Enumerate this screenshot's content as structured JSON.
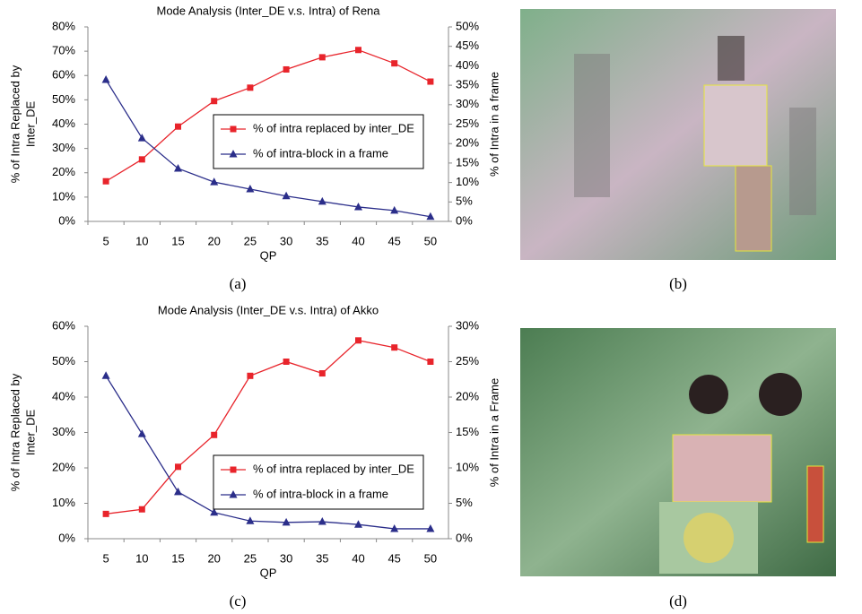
{
  "chart_data": [
    {
      "type": "line",
      "title": "Mode Analysis (Inter_DE v.s. Intra) of Rena",
      "xlabel": "QP",
      "ylabel": [
        "% of Intra Replaced by",
        "Inter_DE"
      ],
      "y2label": "% of Intra in a frame",
      "categories": [
        5,
        10,
        15,
        20,
        25,
        30,
        35,
        40,
        45,
        50
      ],
      "series": [
        {
          "name": "% of intra replaced by inter_DE",
          "color": "#e8242b",
          "marker": "square",
          "values": [
            16.5,
            25.5,
            39,
            49.5,
            55,
            62.5,
            67.5,
            70.5,
            65,
            57.5
          ]
        },
        {
          "name": "% of intra-block in a frame",
          "color": "#2b2e8a",
          "marker": "triangle",
          "axis": "y2",
          "values": [
            36.4,
            21.4,
            13.6,
            10.1,
            8.3,
            6.5,
            5.1,
            3.7,
            2.8,
            1.2
          ]
        }
      ],
      "ylim": [
        0,
        80
      ],
      "yticks": [
        {
          "value": 0,
          "label": "0%"
        },
        {
          "value": 10,
          "label": "10%"
        },
        {
          "value": 20,
          "label": "20%"
        },
        {
          "value": 30,
          "label": "30%"
        },
        {
          "value": 40,
          "label": "40%"
        },
        {
          "value": 50,
          "label": "50%"
        },
        {
          "value": 60,
          "label": "60%"
        },
        {
          "value": 70,
          "label": "70%"
        },
        {
          "value": 80,
          "label": "80%"
        }
      ],
      "y2lim": [
        0,
        50
      ],
      "y2ticks": [
        {
          "value": 0,
          "label": "0%"
        },
        {
          "value": 5,
          "label": "5%"
        },
        {
          "value": 10,
          "label": "10%"
        },
        {
          "value": 15,
          "label": "15%"
        },
        {
          "value": 20,
          "label": "20%"
        },
        {
          "value": 25,
          "label": "25%"
        },
        {
          "value": 30,
          "label": "30%"
        },
        {
          "value": 35,
          "label": "35%"
        },
        {
          "value": 40,
          "label": "40%"
        },
        {
          "value": 45,
          "label": "45%"
        },
        {
          "value": 50,
          "label": "50%"
        }
      ],
      "grid": false
    },
    {
      "type": "line",
      "title": "Mode Analysis (Inter_DE v.s. Intra) of Akko",
      "xlabel": "QP",
      "ylabel": [
        "% of Intra Replaced by",
        "Inter_DE"
      ],
      "y2label": "% of Intra in a Frame",
      "categories": [
        5,
        10,
        15,
        20,
        25,
        30,
        35,
        40,
        45,
        50
      ],
      "series": [
        {
          "name": "% of intra replaced by inter_DE",
          "color": "#e8242b",
          "marker": "square",
          "values": [
            7,
            8.3,
            20.3,
            29.3,
            46,
            50,
            46.7,
            56,
            54,
            50
          ]
        },
        {
          "name": "% of intra-block in a frame",
          "color": "#2b2e8a",
          "marker": "triangle",
          "axis": "y2",
          "values": [
            23,
            14.8,
            6.6,
            3.7,
            2.5,
            2.3,
            2.4,
            2.0,
            1.4,
            1.4
          ]
        }
      ],
      "ylim": [
        0,
        60
      ],
      "yticks": [
        {
          "value": 0,
          "label": "0%"
        },
        {
          "value": 10,
          "label": "10%"
        },
        {
          "value": 20,
          "label": "20%"
        },
        {
          "value": 30,
          "label": "30%"
        },
        {
          "value": 40,
          "label": "40%"
        },
        {
          "value": 50,
          "label": "50%"
        },
        {
          "value": 60,
          "label": "60%"
        }
      ],
      "y2lim": [
        0,
        30
      ],
      "y2ticks": [
        {
          "value": 0,
          "label": "0%"
        },
        {
          "value": 5,
          "label": "5%"
        },
        {
          "value": 10,
          "label": "10%"
        },
        {
          "value": 15,
          "label": "15%"
        },
        {
          "value": 20,
          "label": "20%"
        },
        {
          "value": 25,
          "label": "25%"
        },
        {
          "value": 30,
          "label": "30%"
        }
      ],
      "grid": false
    }
  ],
  "captions": [
    "(a)",
    "(b)",
    "(c)",
    "(d)"
  ]
}
